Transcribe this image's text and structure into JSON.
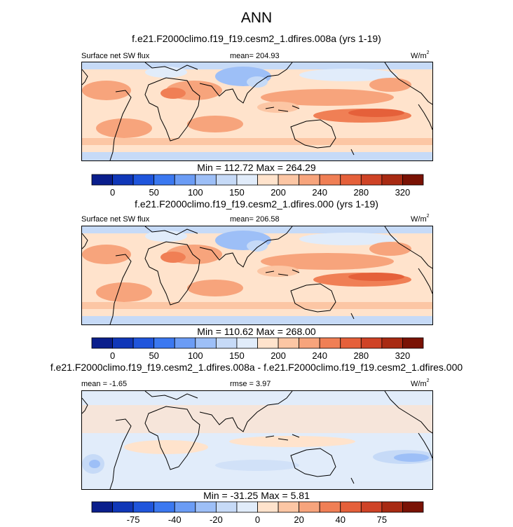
{
  "main_title": "ANN",
  "colors": {
    "scale": [
      "#0a1e8c",
      "#1037b8",
      "#1f55dc",
      "#3b78f0",
      "#6b9cf5",
      "#9dbff7",
      "#c6daf7",
      "#e1ecfa",
      "#ffe3cc",
      "#fcc6a4",
      "#f7a47c",
      "#f07f55",
      "#e5603a",
      "#cf4326",
      "#a82a12",
      "#7a1204"
    ],
    "coast": "#000000"
  },
  "panels": [
    {
      "title": "f.e21.F2000climo.f19_f19.cesm2_1.dfires.008a (yrs 1-19)",
      "left_label": "Surface net SW flux",
      "center_label": "mean= 204.93",
      "units": "W/m",
      "units_sup": "2",
      "minmax": "Min = 112.72 Max = 264.29",
      "colorbar_ticks": [
        "0",
        "50",
        "100",
        "150",
        "200",
        "240",
        "280",
        "320"
      ],
      "field_type": "absolute"
    },
    {
      "title": "f.e21.F2000climo.f19_f19.cesm2_1.dfires.000 (yrs 1-19)",
      "left_label": "Surface net SW flux",
      "center_label": "mean= 206.58",
      "units": "W/m",
      "units_sup": "2",
      "minmax": "Min = 110.62 Max = 268.00",
      "colorbar_ticks": [
        "0",
        "50",
        "100",
        "150",
        "200",
        "240",
        "280",
        "320"
      ],
      "field_type": "absolute"
    },
    {
      "title": "f.e21.F2000climo.f19_f19.cesm2_1.dfires.008a - f.e21.F2000climo.f19_f19.cesm2_1.dfires.000",
      "left_label": "mean = -1.65",
      "center_label": "rmse = 3.97",
      "units": "W/m",
      "units_sup": "2",
      "minmax": "Min = -31.25 Max =  5.81",
      "colorbar_ticks": [
        "-75",
        "-40",
        "-20",
        "0",
        "20",
        "40",
        "75"
      ],
      "field_type": "difference"
    }
  ],
  "chart_data": [
    {
      "type": "heatmap",
      "title": "f.e21.F2000climo.f19_f19.cesm2_1.dfires.008a (yrs 1-19)",
      "variable": "Surface net SW flux",
      "units": "W/m2",
      "mean": 204.93,
      "min": 112.72,
      "max": 264.29,
      "color_levels": [
        0,
        25,
        50,
        75,
        100,
        125,
        150,
        175,
        200,
        220,
        240,
        260,
        280,
        300,
        320
      ],
      "colorbar_labels": [
        0,
        50,
        100,
        150,
        200,
        240,
        280,
        320
      ]
    },
    {
      "type": "heatmap",
      "title": "f.e21.F2000climo.f19_f19.cesm2_1.dfires.000 (yrs 1-19)",
      "variable": "Surface net SW flux",
      "units": "W/m2",
      "mean": 206.58,
      "min": 110.62,
      "max": 268.0,
      "color_levels": [
        0,
        25,
        50,
        75,
        100,
        125,
        150,
        175,
        200,
        220,
        240,
        260,
        280,
        300,
        320
      ],
      "colorbar_labels": [
        0,
        50,
        100,
        150,
        200,
        240,
        280,
        320
      ]
    },
    {
      "type": "heatmap",
      "title": "f.e21.F2000climo.f19_f19.cesm2_1.dfires.008a - f.e21.F2000climo.f19_f19.cesm2_1.dfires.000",
      "units": "W/m2",
      "mean": -1.65,
      "rmse": 3.97,
      "min": -31.25,
      "max": 5.81,
      "color_levels": [
        -100,
        -75,
        -50,
        -40,
        -30,
        -20,
        -10,
        0,
        10,
        20,
        30,
        40,
        50,
        75,
        100
      ],
      "colorbar_labels": [
        -75,
        -40,
        -20,
        0,
        20,
        40,
        75
      ]
    }
  ]
}
